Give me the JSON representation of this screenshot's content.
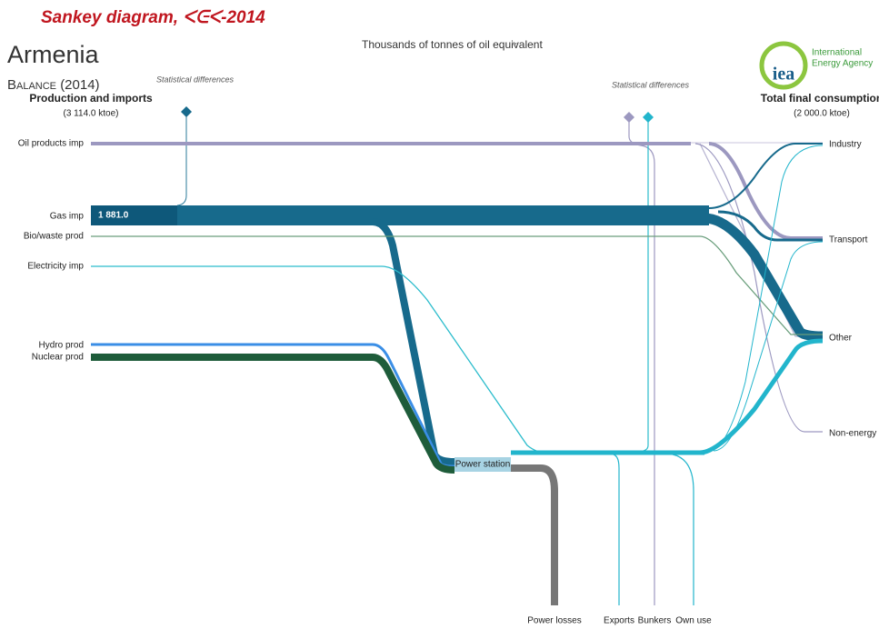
{
  "header": {
    "title": "Sankey diagram, ᐸᕮᐸ-2014",
    "country": "Armenia",
    "subtitle": "Balance (2014)",
    "unit": "Thousands of tonnes of oil equivalent"
  },
  "logo": {
    "mark": "iea",
    "name": [
      "International",
      "Energy Agency"
    ]
  },
  "left": {
    "heading": "Production and imports",
    "total": "(3 114.0 ktoe)"
  },
  "right": {
    "heading": "Total final consumption",
    "total": "(2 000.0 ktoe)"
  },
  "statistical_differences": [
    "Statistical differences",
    "Statistical differences"
  ],
  "sources": [
    "Oil products imp",
    "Gas imp",
    "Bio/waste prod",
    "Electricity imp",
    "Hydro prod",
    "Nuclear prod"
  ],
  "flow_label": "1 881.0",
  "transformation": "Power station",
  "sinks": [
    "Industry",
    "Transport",
    "Other",
    "Non-energy use"
  ],
  "outputs": [
    "Power losses",
    "Exports",
    "Bunkers",
    "Own use"
  ]
}
